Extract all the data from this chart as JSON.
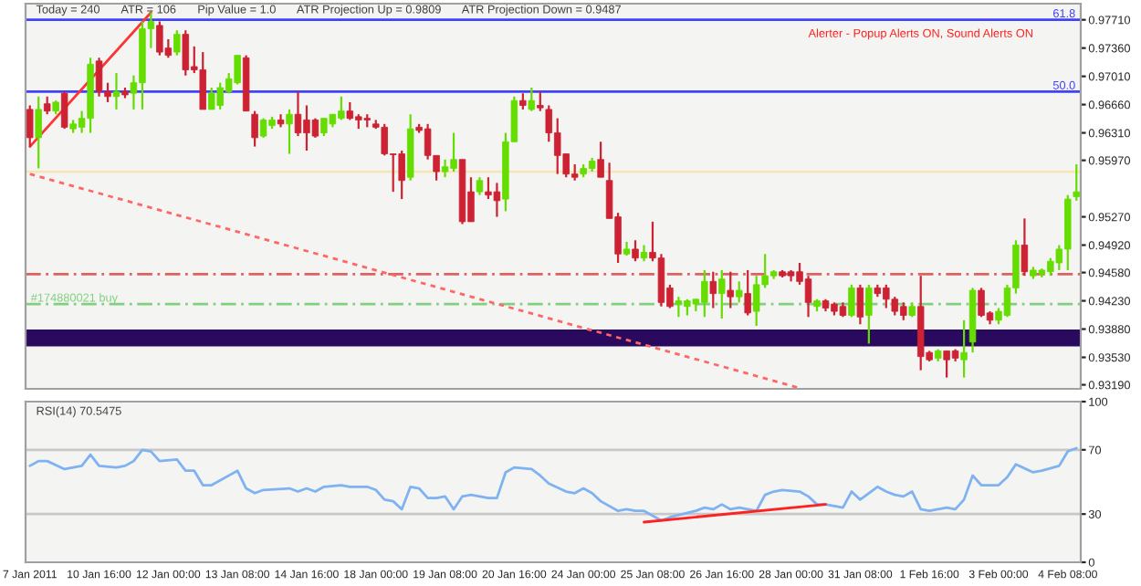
{
  "chart_data": [
    {
      "type": "candlestick",
      "annotations": [
        "Today = 240",
        "ATR = 106",
        "Pip Value = 1.0",
        "ATR Projection Up = 0.9809",
        "ATR Projection Down = 0.9487",
        "Alerter - Popup Alerts ON, Sound Alerts ON",
        {
          "text": "61.8",
          "y": 0.9771
        },
        {
          "text": "50.0",
          "y": 0.9682
        }
      ],
      "categories": [
        null,
        null,
        null,
        null,
        null,
        null,
        null,
        null,
        null,
        null,
        null,
        null,
        null,
        null,
        null,
        null,
        null,
        null,
        null,
        null,
        null,
        null,
        null,
        null,
        null,
        null,
        null,
        null,
        null,
        null,
        null,
        null,
        null,
        null,
        null,
        null,
        null,
        null,
        null,
        null,
        null,
        null,
        null,
        null,
        null,
        null,
        null,
        null,
        null,
        null,
        null,
        null,
        null,
        null,
        null,
        null,
        null,
        null,
        null,
        null,
        null,
        null,
        null,
        null,
        null,
        null,
        null,
        null,
        null,
        null,
        null,
        null,
        null,
        null,
        null,
        null,
        null,
        null,
        null,
        null,
        null,
        null,
        null,
        null,
        null,
        null,
        null,
        null,
        null,
        null,
        null,
        null,
        null,
        null,
        null,
        null,
        null,
        null,
        null,
        null,
        null,
        null,
        null,
        null,
        null,
        null,
        null,
        null,
        null,
        null,
        null,
        null,
        null,
        null,
        null,
        null,
        null,
        null,
        null,
        null,
        null,
        null
      ],
      "colors": [
        "#cc2233",
        "#66dd00",
        "#cc2233",
        "#66dd00",
        "#cc2233",
        "#66dd00",
        "#66dd00",
        "#66dd00",
        "#cc2233",
        "#cc2233",
        "#66dd00",
        "#cc2233",
        "#66dd00",
        "#66dd00",
        "#66dd00",
        "#cc2233",
        "#cc2233",
        "#66dd00",
        "#cc2233",
        "#cc2233",
        "#cc2233",
        "#66dd00",
        "#66dd00",
        "#66dd00",
        "#66dd00",
        "#cc2233",
        "#cc2233",
        "#66dd00",
        "#66dd00",
        "#cc2233",
        "#66dd00",
        "#cc2233",
        "#cc2233",
        "#cc2233",
        "#66dd00",
        "#66dd00",
        "#66dd00",
        "#cc2233",
        "#cc2233",
        "#cc2233",
        "#cc2233",
        "#cc2233",
        "#cc2233",
        "#cc2233",
        "#66dd00",
        "#cc2233",
        "#cc2233",
        "#cc2233",
        "#66dd00",
        "#66dd00",
        "#cc2233",
        "#cc2233",
        "#66dd00",
        "#cc2233",
        "#cc2233",
        "#66dd00",
        "#66dd00",
        "#cc2233",
        "#66dd00",
        "#cc2233",
        "#cc2233",
        "#cc2233",
        "#cc2233",
        "#cc2233",
        "#66dd00",
        "#66dd00",
        "#cc2233",
        "#cc2233",
        "#cc2233",
        "#66dd00",
        "#cc2233",
        "#66dd00",
        "#cc2233",
        "#cc2233",
        "#cc2233",
        "#66dd00",
        "#66dd00",
        "#66dd00",
        "#66dd00",
        "#cc2233",
        "#66dd00",
        "#cc2233",
        "#66dd00",
        "#cc2233",
        "#66dd00",
        "#66dd00",
        "#66dd00",
        "#cc2233",
        "#cc2233",
        "#cc2233",
        "#cc2233",
        "#66dd00",
        "#cc2233",
        "#cc2233",
        "#cc2233",
        "#66dd00",
        "#cc2233",
        "#66dd00",
        "#cc2233",
        "#cc2233",
        "#cc2233",
        "#cc2233",
        "#66dd00",
        "#cc2233",
        "#cc2233",
        "#66dd00",
        "#cc2233",
        "#cc2233",
        "#66dd00",
        "#66dd00",
        "#cc2233",
        "#cc2233",
        "#66dd00",
        "#66dd00",
        "#66dd00",
        "#cc2233",
        "#66dd00",
        "#66dd00",
        "#66dd00",
        "#66dd00",
        "#66dd00",
        "#66dd00"
      ],
      "ohlc": [
        [
          0.966,
          0.9665,
          0.9614,
          0.9625
        ],
        [
          0.9625,
          0.9676,
          0.9587,
          0.966
        ],
        [
          0.9667,
          0.9676,
          0.9654,
          0.9658
        ],
        [
          0.9658,
          0.9671,
          0.9654,
          0.9669
        ],
        [
          0.968,
          0.9682,
          0.9636,
          0.9638
        ],
        [
          0.9636,
          0.9647,
          0.9631,
          0.9642
        ],
        [
          0.9638,
          0.9658,
          0.9631,
          0.9649
        ],
        [
          0.9649,
          0.9724,
          0.9631,
          0.9716
        ],
        [
          0.972,
          0.9724,
          0.9676,
          0.9682
        ],
        [
          0.9682,
          0.9693,
          0.9669,
          0.9676
        ],
        [
          0.9676,
          0.9705,
          0.966,
          0.9682
        ],
        [
          0.9682,
          0.9687,
          0.9674,
          0.9678
        ],
        [
          0.968,
          0.9702,
          0.966,
          0.9693
        ],
        [
          0.9693,
          0.9769,
          0.966,
          0.976
        ],
        [
          0.976,
          0.978,
          0.9736,
          0.9769
        ],
        [
          0.9764,
          0.9769,
          0.9727,
          0.9731
        ],
        [
          0.9736,
          0.9747,
          0.9724,
          0.9727
        ],
        [
          0.9731,
          0.9758,
          0.9727,
          0.9753
        ],
        [
          0.9753,
          0.9758,
          0.9702,
          0.9709
        ],
        [
          0.9713,
          0.9738,
          0.9705,
          0.9709
        ],
        [
          0.9709,
          0.9731,
          0.966,
          0.966
        ],
        [
          0.966,
          0.9687,
          0.966,
          0.968
        ],
        [
          0.9665,
          0.9693,
          0.966,
          0.9687
        ],
        [
          0.9682,
          0.9705,
          0.968,
          0.9698
        ],
        [
          0.9693,
          0.9727,
          0.9691,
          0.9727
        ],
        [
          0.9724,
          0.9727,
          0.9658,
          0.9658
        ],
        [
          0.9654,
          0.9658,
          0.9614,
          0.9625
        ],
        [
          0.9627,
          0.9649,
          0.9625,
          0.9647
        ],
        [
          0.964,
          0.9651,
          0.9636,
          0.9647
        ],
        [
          0.9647,
          0.9654,
          0.9638,
          0.9642
        ],
        [
          0.9642,
          0.966,
          0.9605,
          0.9654
        ],
        [
          0.9654,
          0.9682,
          0.9627,
          0.9631
        ],
        [
          0.9647,
          0.9665,
          0.9609,
          0.9631
        ],
        [
          0.9647,
          0.9649,
          0.9625,
          0.9627
        ],
        [
          0.9631,
          0.9649,
          0.9627,
          0.9649
        ],
        [
          0.9642,
          0.9654,
          0.9638,
          0.9654
        ],
        [
          0.9649,
          0.9676,
          0.9647,
          0.9658
        ],
        [
          0.9658,
          0.9669,
          0.9647,
          0.9649
        ],
        [
          0.9651,
          0.9654,
          0.9636,
          0.9647
        ],
        [
          0.9649,
          0.9654,
          0.9638,
          0.9647
        ],
        [
          0.9642,
          0.9647,
          0.9636,
          0.9638
        ],
        [
          0.9638,
          0.9642,
          0.9603,
          0.9605
        ],
        [
          0.9605,
          0.9605,
          0.9558,
          0.9604
        ],
        [
          0.9605,
          0.9609,
          0.9549,
          0.9572
        ],
        [
          0.9576,
          0.9654,
          0.9572,
          0.9636
        ],
        [
          0.9638,
          0.9642,
          0.9631,
          0.9634
        ],
        [
          0.9636,
          0.9642,
          0.9598,
          0.9603
        ],
        [
          0.9603,
          0.9603,
          0.9572,
          0.9583
        ],
        [
          0.9583,
          0.9598,
          0.9576,
          0.9589
        ],
        [
          0.9587,
          0.9631,
          0.9583,
          0.9598
        ],
        [
          0.9598,
          0.9598,
          0.9518,
          0.9521
        ],
        [
          0.9558,
          0.9576,
          0.9521,
          0.9521
        ],
        [
          0.9558,
          0.9576,
          0.9554,
          0.9572
        ],
        [
          0.9558,
          0.9576,
          0.9549,
          0.9554
        ],
        [
          0.9558,
          0.9569,
          0.9527,
          0.9547
        ],
        [
          0.9549,
          0.9631,
          0.9534,
          0.962
        ],
        [
          0.962,
          0.9676,
          0.962,
          0.9671
        ],
        [
          0.9671,
          0.968,
          0.966,
          0.9665
        ],
        [
          0.966,
          0.9687,
          0.9658,
          0.9671
        ],
        [
          0.9665,
          0.9682,
          0.9658,
          0.9662
        ],
        [
          0.966,
          0.9665,
          0.962,
          0.9631
        ],
        [
          0.9631,
          0.9649,
          0.958,
          0.9603
        ],
        [
          0.9605,
          0.9605,
          0.9576,
          0.958
        ],
        [
          0.958,
          0.9592,
          0.9572,
          0.9576
        ],
        [
          0.958,
          0.9592,
          0.9576,
          0.9587
        ],
        [
          0.9587,
          0.96,
          0.9583,
          0.9596
        ],
        [
          0.9598,
          0.962,
          0.9576,
          0.9576
        ],
        [
          0.9572,
          0.9594,
          0.9525,
          0.9525
        ],
        [
          0.9527,
          0.9532,
          0.947,
          0.9481
        ],
        [
          0.9481,
          0.9496,
          0.9479,
          0.9487
        ],
        [
          0.9487,
          0.9498,
          0.9472,
          0.9476
        ],
        [
          0.9476,
          0.9492,
          0.9472,
          0.9483
        ],
        [
          0.9483,
          0.9521,
          0.9472,
          0.9476
        ],
        [
          0.9476,
          0.9481,
          0.9416,
          0.9421
        ],
        [
          0.9439,
          0.9443,
          0.9414,
          0.9416
        ],
        [
          0.9419,
          0.9428,
          0.9403,
          0.9423
        ],
        [
          0.9416,
          0.9425,
          0.9405,
          0.9423
        ],
        [
          0.9419,
          0.9425,
          0.941,
          0.9425
        ],
        [
          0.9421,
          0.9461,
          0.9403,
          0.9447
        ],
        [
          0.9447,
          0.9459,
          0.9414,
          0.9432
        ],
        [
          0.9432,
          0.9461,
          0.9401,
          0.945
        ],
        [
          0.9436,
          0.9459,
          0.9414,
          0.9428
        ],
        [
          0.9428,
          0.9447,
          0.9421,
          0.9436
        ],
        [
          0.9432,
          0.9461,
          0.9405,
          0.9408
        ],
        [
          0.941,
          0.9454,
          0.9392,
          0.9443
        ],
        [
          0.9443,
          0.9481,
          0.9439,
          0.9454
        ],
        [
          0.9454,
          0.9461,
          0.945,
          0.9459
        ],
        [
          0.9459,
          0.9461,
          0.9452,
          0.9454
        ],
        [
          0.9459,
          0.9461,
          0.9447,
          0.9454
        ],
        [
          0.9459,
          0.947,
          0.9443,
          0.9447
        ],
        [
          0.945,
          0.9454,
          0.9403,
          0.9421
        ],
        [
          0.9416,
          0.9425,
          0.941,
          0.9423
        ],
        [
          0.9423,
          0.9425,
          0.941,
          0.9414
        ],
        [
          0.9419,
          0.9421,
          0.9405,
          0.941
        ],
        [
          0.9416,
          0.9421,
          0.9403,
          0.9405
        ],
        [
          0.9405,
          0.9443,
          0.9403,
          0.9439
        ],
        [
          0.9439,
          0.9443,
          0.9394,
          0.9403
        ],
        [
          0.9405,
          0.9443,
          0.937,
          0.9439
        ],
        [
          0.9439,
          0.9443,
          0.9428,
          0.9432
        ],
        [
          0.9439,
          0.9443,
          0.9414,
          0.9425
        ],
        [
          0.9425,
          0.9428,
          0.9405,
          0.941
        ],
        [
          0.9416,
          0.9421,
          0.9399,
          0.9405
        ],
        [
          0.9405,
          0.9421,
          0.9403,
          0.9416
        ],
        [
          0.9416,
          0.9454,
          0.9337,
          0.9354
        ],
        [
          0.9359,
          0.9361,
          0.9348,
          0.935
        ],
        [
          0.9352,
          0.9363,
          0.9348,
          0.9361
        ],
        [
          0.9361,
          0.9361,
          0.9328,
          0.935
        ],
        [
          0.9361,
          0.9363,
          0.9348,
          0.9352
        ],
        [
          0.935,
          0.9399,
          0.9328,
          0.9359
        ],
        [
          0.9372,
          0.9439,
          0.9359,
          0.9436
        ],
        [
          0.9436,
          0.9439,
          0.9403,
          0.9405
        ],
        [
          0.9408,
          0.941,
          0.9394,
          0.9399
        ],
        [
          0.9399,
          0.9414,
          0.9394,
          0.941
        ],
        [
          0.9405,
          0.9443,
          0.9403,
          0.9439
        ],
        [
          0.9439,
          0.9498,
          0.9432,
          0.9492
        ],
        [
          0.9492,
          0.9525,
          0.9454,
          0.9459
        ],
        [
          0.9454,
          0.9465,
          0.945,
          0.9461
        ],
        [
          0.9456,
          0.9463,
          0.9452,
          0.9461
        ],
        [
          0.9459,
          0.9476,
          0.9454,
          0.9472
        ],
        [
          0.947,
          0.9492,
          0.9461,
          0.9487
        ],
        [
          0.9487,
          0.9554,
          0.9461,
          0.9549
        ],
        [
          0.9552,
          0.9592,
          0.9547,
          0.9558
        ]
      ],
      "series": [
        {
          "type": "line",
          "color": "#ff3333",
          "line_style": "solid",
          "values": [
            0.9614,
            null,
            null,
            null,
            null,
            null,
            null,
            null,
            null,
            null,
            null,
            null,
            null,
            null,
            0.978,
            null,
            null,
            null,
            null,
            null,
            null,
            null,
            null,
            null,
            null,
            null,
            null,
            null,
            null,
            null,
            null,
            null,
            null,
            null,
            null,
            null,
            null,
            null,
            null,
            null,
            null,
            null,
            null,
            null,
            null,
            null,
            null,
            null,
            null,
            null,
            null,
            null,
            null,
            null,
            null,
            null,
            null,
            null,
            null,
            null,
            null,
            null,
            null,
            null,
            null,
            null,
            null,
            null,
            null,
            null,
            null,
            null,
            null,
            null,
            null,
            null,
            null,
            null,
            null,
            null,
            null,
            null,
            null,
            null,
            null,
            null,
            null,
            null,
            null,
            null,
            null,
            null,
            null,
            null,
            null,
            null,
            null,
            null,
            null,
            null,
            null,
            null,
            null,
            null,
            null,
            null,
            null,
            null,
            null,
            null,
            null,
            null,
            null,
            null,
            null,
            null,
            null,
            null,
            null,
            null,
            null,
            null
          ]
        },
        {
          "type": "line",
          "color": "#ff6666",
          "line_style": "dotted",
          "values": [
            0.958,
            null,
            null,
            null,
            null,
            null,
            null,
            null,
            null,
            null,
            null,
            null,
            null,
            null,
            null,
            null,
            null,
            null,
            null,
            null,
            null,
            null,
            null,
            null,
            null,
            null,
            null,
            null,
            null,
            null,
            null,
            null,
            null,
            null,
            null,
            null,
            null,
            null,
            null,
            null,
            null,
            null,
            null,
            null,
            null,
            null,
            null,
            null,
            null,
            null,
            null,
            null,
            null,
            null,
            null,
            null,
            null,
            null,
            null,
            null,
            null,
            null,
            null,
            null,
            null,
            null,
            null,
            null,
            null,
            null,
            null,
            null,
            null,
            null,
            null,
            null,
            null,
            null,
            null,
            null,
            null,
            null,
            null,
            null,
            null,
            null,
            null,
            null,
            null,
            0.9315,
            null,
            null,
            null,
            null,
            null,
            null,
            null,
            null,
            null,
            null,
            null,
            null,
            null,
            null,
            null,
            null,
            null,
            null,
            null,
            null,
            null,
            null,
            null,
            null,
            null,
            null,
            null,
            null,
            null,
            null,
            null,
            null
          ]
        }
      ],
      "ylim": [
        0.9314,
        0.9791
      ],
      "yticks": [
        {
          "value": 0.9771,
          "label": "0.97710"
        },
        {
          "value": 0.9736,
          "label": "0.97360"
        },
        {
          "value": 0.9701,
          "label": "0.97010"
        },
        {
          "value": 0.9666,
          "label": "0.96660"
        },
        {
          "value": 0.9631,
          "label": "0.96310"
        },
        {
          "value": 0.9597,
          "label": "0.95970"
        },
        {
          "value": 0.9527,
          "label": "0.95270"
        },
        {
          "value": 0.9492,
          "label": "0.94920"
        },
        {
          "value": 0.9458,
          "label": "0.94580"
        },
        {
          "value": 0.9423,
          "label": "0.94230"
        },
        {
          "value": 0.9388,
          "label": "0.93880"
        },
        {
          "value": 0.9353,
          "label": "0.93530"
        },
        {
          "value": 0.9319,
          "label": "0.93190"
        }
      ],
      "ref_lines": [
        {
          "axis": "y",
          "value": 0.9771,
          "color": "#4040ff",
          "line_style": "solid"
        },
        {
          "axis": "y",
          "value": 0.9682,
          "color": "#4040ff",
          "line_style": "solid"
        },
        {
          "axis": "y",
          "value": 0.9583,
          "color": "#f5e6b8",
          "line_style": "solid"
        },
        {
          "axis": "y",
          "value": 0.9456,
          "color": "#e06060",
          "line_style": "dashed"
        },
        {
          "axis": "y",
          "value": 0.9419,
          "label": "#174880021 buy",
          "color": "#80d080",
          "line_style": "dashed"
        }
      ],
      "bands": [
        {
          "axis": "y",
          "from": 0.9368,
          "to": 0.9386,
          "color": "#2a0a5e"
        }
      ],
      "tick_labels": "y",
      "grid": false,
      "legend": false
    },
    {
      "type": "line",
      "annotations": [
        "RSI(14) 70.5475"
      ],
      "categories": [
        "7 Jan 2011",
        null,
        null,
        null,
        null,
        null,
        null,
        null,
        "10 Jan 16:00",
        null,
        null,
        null,
        null,
        null,
        null,
        null,
        "12 Jan 00:00",
        null,
        null,
        null,
        null,
        null,
        null,
        null,
        "13 Jan 08:00",
        null,
        null,
        null,
        null,
        null,
        null,
        null,
        "14 Jan 16:00",
        null,
        null,
        null,
        null,
        null,
        null,
        null,
        "18 Jan 00:00",
        null,
        null,
        null,
        null,
        null,
        null,
        null,
        "19 Jan 08:00",
        null,
        null,
        null,
        null,
        null,
        null,
        null,
        "20 Jan 16:00",
        null,
        null,
        null,
        null,
        null,
        null,
        null,
        "24 Jan 00:00",
        null,
        null,
        null,
        null,
        null,
        null,
        null,
        "25 Jan 08:00",
        null,
        null,
        null,
        null,
        null,
        null,
        null,
        "26 Jan 16:00",
        null,
        null,
        null,
        null,
        null,
        null,
        null,
        "28 Jan 00:00",
        null,
        null,
        null,
        null,
        null,
        null,
        null,
        "31 Jan 08:00",
        null,
        null,
        null,
        null,
        null,
        null,
        null,
        "1 Feb 16:00",
        null,
        null,
        null,
        null,
        null,
        null,
        null,
        "3 Feb 00:00",
        null,
        null,
        null,
        null,
        null,
        null,
        null,
        "4 Feb 08:00",
        null
      ],
      "series": [
        {
          "color": "#7fb2f0",
          "line_style": "solid",
          "values": [
            60,
            63,
            63,
            null,
            58,
            59,
            60,
            67,
            60,
            null,
            59,
            60,
            63,
            70,
            69,
            63,
            null,
            64,
            57,
            57,
            48,
            48,
            51,
            null,
            57,
            46,
            43,
            45,
            null,
            null,
            46,
            44,
            46,
            44,
            47,
            null,
            48,
            47,
            null,
            47,
            45,
            39,
            38,
            33,
            47,
            46,
            40,
            40,
            41,
            33,
            41,
            42,
            null,
            40,
            40,
            56,
            59,
            null,
            58,
            54,
            49,
            null,
            44,
            43,
            46,
            43,
            38,
            null,
            32,
            33,
            32,
            32,
            29,
            26,
            28,
            null,
            null,
            32,
            34,
            33,
            36,
            33,
            34,
            null,
            32,
            42,
            44,
            45,
            null,
            44,
            41,
            36,
            36,
            null,
            34,
            44,
            39,
            null,
            47,
            44,
            42,
            41,
            44,
            33,
            32,
            null,
            34,
            33,
            39,
            54,
            48,
            null,
            48,
            53,
            61,
            null,
            56,
            57,
            null,
            60,
            69,
            71
          ]
        },
        {
          "color": "#ff2020",
          "line_style": "solid",
          "values": [
            null,
            null,
            null,
            null,
            null,
            null,
            null,
            null,
            null,
            null,
            null,
            null,
            null,
            null,
            null,
            null,
            null,
            null,
            null,
            null,
            null,
            null,
            null,
            null,
            null,
            null,
            null,
            null,
            null,
            null,
            null,
            null,
            null,
            null,
            null,
            null,
            null,
            null,
            null,
            null,
            null,
            null,
            null,
            null,
            null,
            null,
            null,
            null,
            null,
            null,
            null,
            null,
            null,
            null,
            null,
            null,
            null,
            null,
            null,
            null,
            null,
            null,
            null,
            null,
            null,
            null,
            null,
            null,
            null,
            null,
            null,
            25,
            null,
            null,
            null,
            null,
            null,
            null,
            null,
            null,
            null,
            null,
            null,
            null,
            null,
            null,
            null,
            null,
            null,
            null,
            null,
            null,
            36,
            null,
            null,
            null,
            null,
            null,
            null,
            null,
            null,
            null,
            null,
            null,
            null,
            null,
            null,
            null,
            null,
            null,
            null,
            null,
            null,
            null,
            null,
            null,
            null,
            null,
            null,
            null,
            null,
            null
          ]
        }
      ],
      "ylim": [
        0,
        100
      ],
      "yticks": [
        100,
        70,
        30,
        0
      ],
      "ref_lines": [
        {
          "axis": "y",
          "value": 70,
          "color": "#c8c8c8",
          "line_style": "solid"
        },
        {
          "axis": "y",
          "value": 30,
          "color": "#c8c8c8",
          "line_style": "solid"
        }
      ],
      "grid": false,
      "legend": false
    }
  ]
}
